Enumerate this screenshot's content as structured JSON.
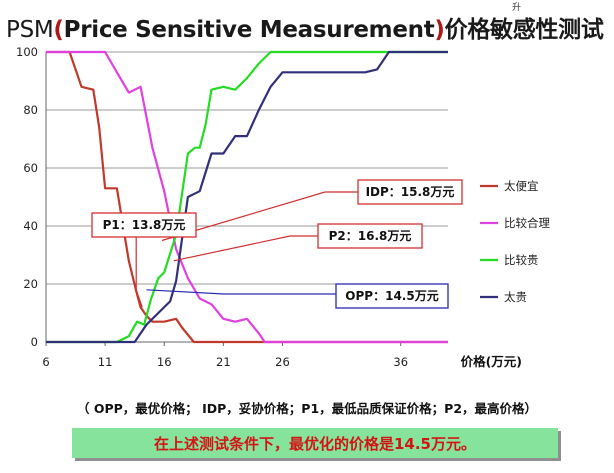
{
  "title": {
    "mark": "升",
    "parts": {
      "lead": "PSM",
      "open_paren": "(",
      "english": "Price Sensitive Measurement",
      "close_paren": ")",
      "chinese": "价格敏感性测试"
    }
  },
  "chart_data": {
    "type": "line",
    "xlabel": "价格(万元)",
    "ylabel": "",
    "xlim": [
      6,
      40
    ],
    "ylim": [
      0,
      100
    ],
    "x_ticks": [
      "6",
      "11",
      "16",
      "21",
      "26",
      "36"
    ],
    "y_ticks": [
      "0",
      "20",
      "40",
      "60",
      "80",
      "100"
    ],
    "grid": "horizontal",
    "legend_position": "right",
    "series": [
      {
        "name": "太便宜",
        "color": "#c0392b",
        "points": [
          [
            6,
            100
          ],
          [
            8,
            100
          ],
          [
            9,
            88
          ],
          [
            10,
            87
          ],
          [
            10.5,
            74
          ],
          [
            11,
            53
          ],
          [
            12,
            53
          ],
          [
            13,
            28
          ],
          [
            13.6,
            18
          ],
          [
            14,
            12
          ],
          [
            14.5,
            9
          ],
          [
            15,
            7
          ],
          [
            16,
            7
          ],
          [
            17,
            8
          ],
          [
            17.5,
            5
          ],
          [
            18.5,
            0
          ],
          [
            40,
            0
          ]
        ]
      },
      {
        "name": "比较合理",
        "color": "#e040e0",
        "points": [
          [
            6,
            100
          ],
          [
            8,
            100
          ],
          [
            11,
            100
          ],
          [
            12,
            93
          ],
          [
            13,
            86
          ],
          [
            14,
            88
          ],
          [
            15,
            67
          ],
          [
            16,
            52
          ],
          [
            17,
            32
          ],
          [
            18,
            22
          ],
          [
            19,
            15
          ],
          [
            20,
            13
          ],
          [
            21,
            8
          ],
          [
            22,
            7
          ],
          [
            23,
            8
          ],
          [
            24,
            3
          ],
          [
            24.5,
            0
          ],
          [
            40,
            0
          ]
        ]
      },
      {
        "name": "比较贵",
        "color": "#22dd22",
        "points": [
          [
            6,
            0
          ],
          [
            12,
            0
          ],
          [
            13,
            2
          ],
          [
            13.7,
            7
          ],
          [
            14.3,
            6
          ],
          [
            14.9,
            15
          ],
          [
            15.5,
            22
          ],
          [
            16,
            24
          ],
          [
            17,
            37
          ],
          [
            18,
            65
          ],
          [
            18.6,
            67
          ],
          [
            19,
            67
          ],
          [
            19.5,
            75
          ],
          [
            20,
            87
          ],
          [
            21,
            88
          ],
          [
            22,
            87
          ],
          [
            23,
            91
          ],
          [
            24,
            96
          ],
          [
            25,
            100
          ],
          [
            40,
            100
          ]
        ]
      },
      {
        "name": "太贵",
        "color": "#30307a",
        "points": [
          [
            6,
            0
          ],
          [
            13.5,
            0
          ],
          [
            14.5,
            6
          ],
          [
            15.5,
            10
          ],
          [
            16.5,
            14
          ],
          [
            17,
            21
          ],
          [
            18,
            50
          ],
          [
            19,
            52
          ],
          [
            20,
            65
          ],
          [
            21,
            65
          ],
          [
            22,
            71
          ],
          [
            23,
            71
          ],
          [
            24,
            80
          ],
          [
            25,
            88
          ],
          [
            26,
            93
          ],
          [
            27,
            93
          ],
          [
            33,
            93
          ],
          [
            34,
            94
          ],
          [
            35,
            100
          ],
          [
            40,
            100
          ]
        ]
      }
    ],
    "annotations": [
      {
        "label": "IDP：15.8万元",
        "x": 15.8,
        "y": 35,
        "color": "#d32f2f"
      },
      {
        "label": "P1：13.8万元",
        "x": 13.8,
        "y": 12,
        "color": "#d32f2f"
      },
      {
        "label": "P2：16.8万元",
        "x": 16.8,
        "y": 28,
        "color": "#d32f2f"
      },
      {
        "label": "OPP：14.5万元",
        "x": 14.5,
        "y": 18,
        "color": "#2a2ab0"
      }
    ]
  },
  "explanation": "（ OPP，最优价格； IDP，妥协价格；P1，最低品质保证价格；P2，最高价格）",
  "conclusion": "在上述测试条件下，最优化的价格是14.5万元。"
}
